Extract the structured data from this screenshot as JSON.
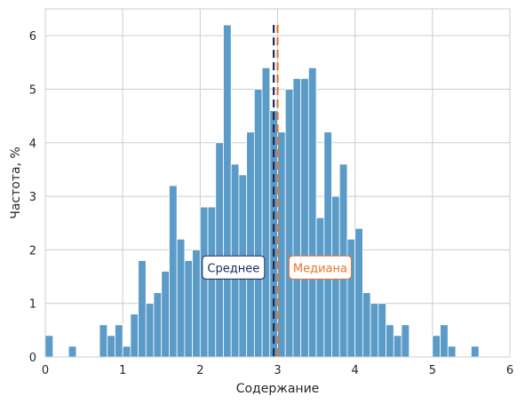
{
  "chart_data": {
    "type": "bar",
    "xlabel": "Содержание",
    "ylabel": "Частота, %",
    "xlim": [
      0,
      6
    ],
    "ylim": [
      0,
      6.5
    ],
    "grid": true,
    "x_ticks": [
      "0",
      "1",
      "2",
      "3",
      "4",
      "5",
      "6"
    ],
    "y_ticks": [
      "0",
      "1",
      "2",
      "3",
      "4",
      "5",
      "6"
    ],
    "bin_width": 0.1,
    "bin_starts": [
      0.0,
      0.1,
      0.2,
      0.3,
      0.4,
      0.5,
      0.6,
      0.7,
      0.8,
      0.9,
      1.0,
      1.1,
      1.2,
      1.3,
      1.4,
      1.5,
      1.6,
      1.7,
      1.8,
      1.9,
      2.0,
      2.1,
      2.2,
      2.3,
      2.4,
      2.5,
      2.6,
      2.7,
      2.8,
      2.9,
      3.0,
      3.1,
      3.2,
      3.3,
      3.4,
      3.5,
      3.6,
      3.7,
      3.8,
      3.9,
      4.0,
      4.1,
      4.2,
      4.3,
      4.4,
      4.5,
      4.6,
      4.7,
      4.8,
      4.9,
      5.0,
      5.1,
      5.2,
      5.3,
      5.4,
      5.5,
      5.6,
      5.7,
      5.8,
      5.9
    ],
    "values": [
      0.4,
      0,
      0,
      0.2,
      0,
      0,
      0,
      0.6,
      0.4,
      0.6,
      0.2,
      0.8,
      1.8,
      1.0,
      1.2,
      1.6,
      3.2,
      2.2,
      1.8,
      2.0,
      2.8,
      2.8,
      4.0,
      6.2,
      3.6,
      3.4,
      4.2,
      5.0,
      5.4,
      4.6,
      4.2,
      5.0,
      5.2,
      5.2,
      5.4,
      2.6,
      4.2,
      3.0,
      3.6,
      2.2,
      2.4,
      1.2,
      1.0,
      1.0,
      0.6,
      0.4,
      0.6,
      0,
      0,
      0,
      0.4,
      0.6,
      0.2,
      0,
      0,
      0.2,
      0,
      0,
      0,
      0
    ],
    "bar_color": "#5b9bc8",
    "mean": {
      "label": "Среднее",
      "value": 2.95,
      "color": "#1b2a5c"
    },
    "median": {
      "label": "Медиана",
      "value": 3.0,
      "color": "#e8752a"
    }
  }
}
